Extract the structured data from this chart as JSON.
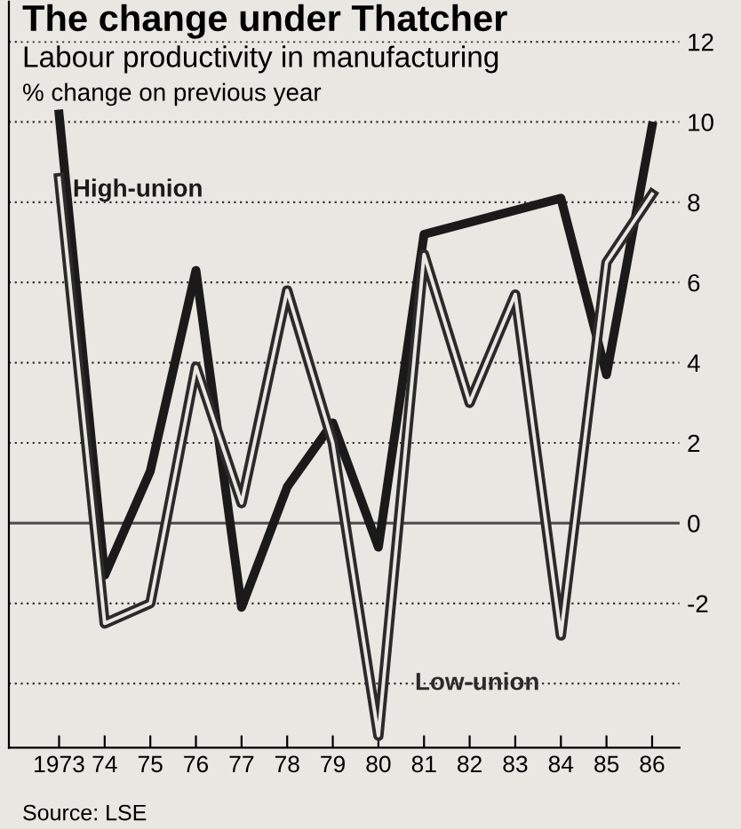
{
  "chart_data": {
    "type": "line",
    "title": "The change under Thatcher",
    "subtitle": "Labour productivity in manufacturing",
    "ylabel": "% change on previous year",
    "x": [
      1973,
      1974,
      1975,
      1976,
      1977,
      1978,
      1979,
      1980,
      1981,
      1984,
      1985,
      1986
    ],
    "series": [
      {
        "name": "High-union",
        "color": "#1a1a1a",
        "values": [
          10.2,
          -1.3,
          1.3,
          6.3,
          -2.1,
          0.9,
          2.5,
          -0.6,
          7.2,
          8.1,
          3.7,
          9.9
        ]
      },
      {
        "name": "Low-union",
        "color": "#2a2a2a",
        "x": [
          1973,
          1974,
          1975,
          1976,
          1977,
          1978,
          1979,
          1980,
          1981,
          1982,
          1983,
          1984,
          1985,
          1986
        ],
        "values": [
          8.6,
          -2.5,
          -2.0,
          3.9,
          0.5,
          5.8,
          2.0,
          -5.3,
          6.7,
          3.0,
          5.7,
          -2.8,
          6.5,
          8.2
        ]
      }
    ],
    "xlim": [
      1971.9,
      1986.6
    ],
    "xticks": [
      {
        "value": 1973,
        "label": "1973"
      },
      {
        "value": 1974,
        "label": "74"
      },
      {
        "value": 1975,
        "label": "75"
      },
      {
        "value": 1976,
        "label": "76"
      },
      {
        "value": 1977,
        "label": "77"
      },
      {
        "value": 1978,
        "label": "78"
      },
      {
        "value": 1979,
        "label": "79"
      },
      {
        "value": 1980,
        "label": "80"
      },
      {
        "value": 1981,
        "label": "81"
      },
      {
        "value": 1982,
        "label": "82"
      },
      {
        "value": 1983,
        "label": "83"
      },
      {
        "value": 1984,
        "label": "84"
      },
      {
        "value": 1985,
        "label": "85"
      },
      {
        "value": 1986,
        "label": "86"
      }
    ],
    "ylim": [
      -5.6,
      13
    ],
    "yticks": [
      {
        "value": -4,
        "label": null
      },
      -2,
      0,
      2,
      4,
      6,
      8,
      10,
      12
    ],
    "grid": "y",
    "legend": false,
    "marker": "none",
    "line_style": "solid",
    "ref_lines": [
      {
        "axis": "y",
        "value": 0,
        "label": null,
        "color": "#555555",
        "line_style": "solid"
      }
    ],
    "annotations": [
      "Source: LSE"
    ]
  }
}
